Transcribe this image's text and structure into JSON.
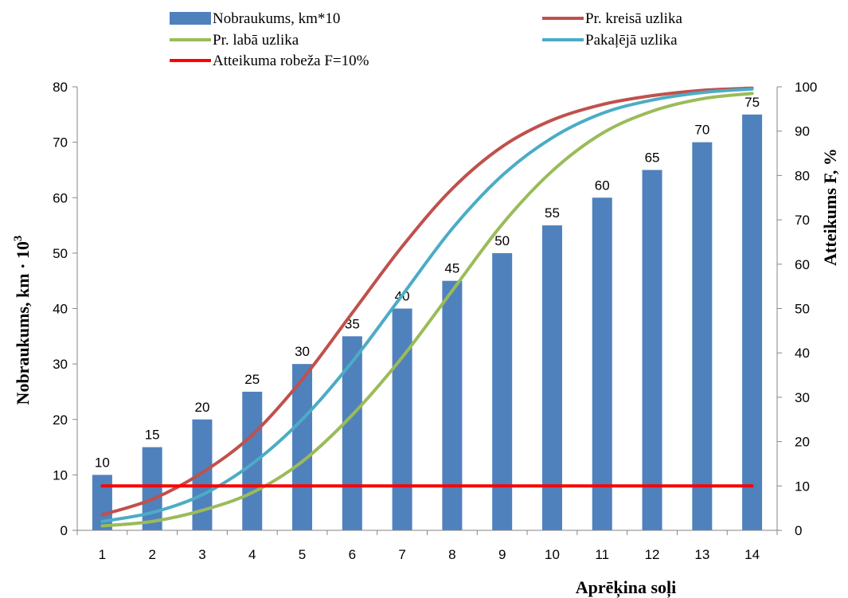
{
  "chart_data": {
    "type": "bar",
    "categories": [
      "1",
      "2",
      "3",
      "4",
      "5",
      "6",
      "7",
      "8",
      "9",
      "10",
      "11",
      "12",
      "13",
      "14"
    ],
    "xlabel": "Aprēķina soļi",
    "ylabel": "Nobraukums, km · 10",
    "ylabel_superscript": "3",
    "y2label": "Atteikums F, %",
    "ylim": [
      0,
      80
    ],
    "y2lim": [
      0,
      100
    ],
    "yticks": [
      "0",
      "10",
      "20",
      "30",
      "40",
      "50",
      "60",
      "70",
      "80"
    ],
    "y2ticks": [
      "0",
      "10",
      "20",
      "30",
      "40",
      "50",
      "60",
      "70",
      "80",
      "90",
      "100"
    ],
    "bars": {
      "name": "Nobraukums, km*10",
      "color": "#4F81BD",
      "axis": "left",
      "values": [
        10,
        15,
        20,
        25,
        30,
        35,
        40,
        45,
        50,
        55,
        60,
        65,
        70,
        75
      ],
      "labels": [
        "10",
        "15",
        "20",
        "25",
        "30",
        "35",
        "40",
        "45",
        "50",
        "55",
        "60",
        "65",
        "70",
        "75"
      ]
    },
    "series": [
      {
        "name": "Pr. kreisā uzlika",
        "color": "#C0504D",
        "axis": "right",
        "values": [
          3.5,
          7,
          13,
          21.5,
          34,
          49,
          64,
          77,
          86.5,
          92.5,
          96,
          98,
          99.2,
          99.7
        ]
      },
      {
        "name": "Pr. labā uzlika",
        "color": "#9BBB59",
        "axis": "right",
        "values": [
          1,
          2,
          4.5,
          8.5,
          15.5,
          26,
          39,
          54,
          69,
          81,
          89.5,
          94.5,
          97.3,
          98.5
        ]
      },
      {
        "name": "Pakaļējā uzlika",
        "color": "#4BACC6",
        "axis": "right",
        "values": [
          2,
          4,
          8,
          15,
          25,
          38,
          53,
          68,
          80,
          88.5,
          94,
          97,
          98.7,
          99.5
        ]
      },
      {
        "name": "Atteikuma robeža F=10%",
        "color": "#FF0000",
        "axis": "right",
        "values": [
          10,
          10,
          10,
          10,
          10,
          10,
          10,
          10,
          10,
          10,
          10,
          10,
          10,
          10
        ]
      }
    ],
    "legend": "top"
  }
}
